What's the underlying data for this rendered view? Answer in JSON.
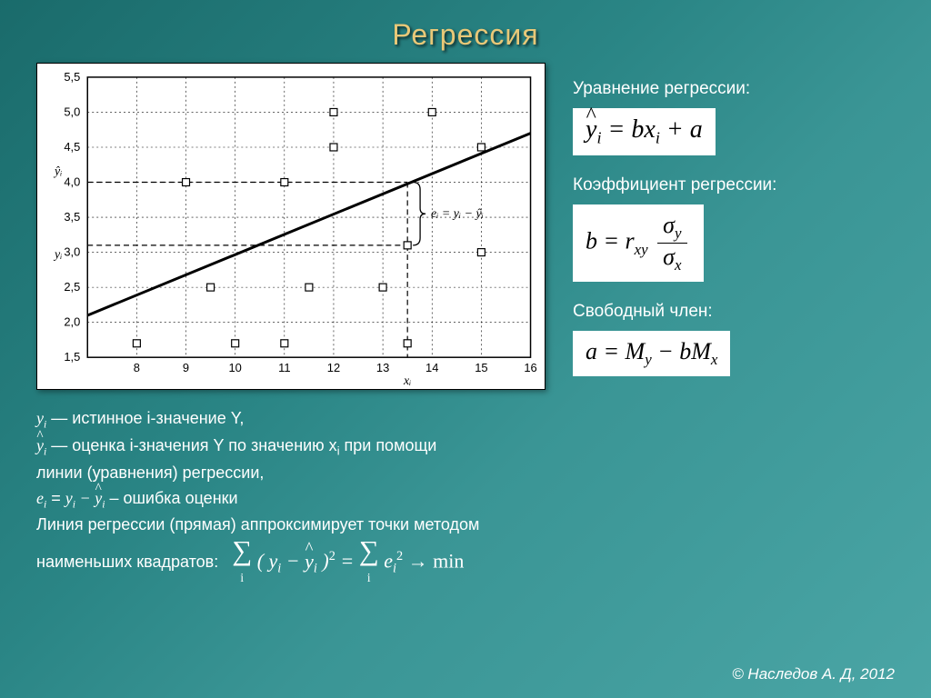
{
  "title": "Регрессия",
  "chart": {
    "x_ticks": [
      8,
      9,
      10,
      11,
      12,
      13,
      14,
      15,
      16
    ],
    "y_ticks": [
      1.5,
      2.0,
      2.5,
      3.0,
      3.5,
      4.0,
      4.5,
      5.0,
      5.5
    ],
    "y_custom_labels": {
      "yi_hat": "ŷᵢ",
      "yi": "yᵢ"
    },
    "x_custom_label": "xᵢ",
    "scatter": [
      {
        "x": 8,
        "y": 1.7
      },
      {
        "x": 9,
        "y": 4.0
      },
      {
        "x": 9.5,
        "y": 2.5
      },
      {
        "x": 10,
        "y": 1.7
      },
      {
        "x": 11,
        "y": 4.0
      },
      {
        "x": 11,
        "y": 1.7
      },
      {
        "x": 11.5,
        "y": 2.5
      },
      {
        "x": 12,
        "y": 5.0
      },
      {
        "x": 12,
        "y": 4.5
      },
      {
        "x": 13,
        "y": 2.5
      },
      {
        "x": 13.5,
        "y": 3.1
      },
      {
        "x": 13.5,
        "y": 1.7
      },
      {
        "x": 14,
        "y": 5.0
      },
      {
        "x": 15,
        "y": 4.5
      },
      {
        "x": 15,
        "y": 3.0
      }
    ],
    "line": {
      "x1": 7,
      "y1": 2.1,
      "x2": 16,
      "y2": 4.7
    },
    "xi_value": 13.5,
    "yi_value": 3.1,
    "yi_hat_value": 4.0,
    "residual_label": "eᵢ = yᵢ − ŷᵢ",
    "plot_bg": "#ffffff",
    "marker_fill": "#ffffff",
    "marker_stroke": "#000000",
    "line_color": "#000000",
    "grid_color": "#000000",
    "axis_color": "#000000"
  },
  "right": {
    "eq_label": "Уравнение регрессии:",
    "coeff_label": "Коэффициент регрессии:",
    "free_label": "Свободный член:"
  },
  "bottom": {
    "line1_a": "y",
    "line1_sub": "i",
    "line1_b": " — истинное i-значение Y,",
    "line2_b": "  — оценка i-значения Y по значению x",
    "line2_sub2": "i",
    "line2_c": " при помощи",
    "line3": "линии (уравнения) регрессии,",
    "line4_a": "e",
    "line4_sub": "i",
    "line4_eq": "  =  ",
    "line4_c": "  – ошибка оценки",
    "line5": "Линия регрессии (прямая) аппроксимирует точки методом",
    "line6_a": "наименьших квадратов:",
    "min_text": "min"
  },
  "copyright": "© Наследов А. Д, 2012"
}
